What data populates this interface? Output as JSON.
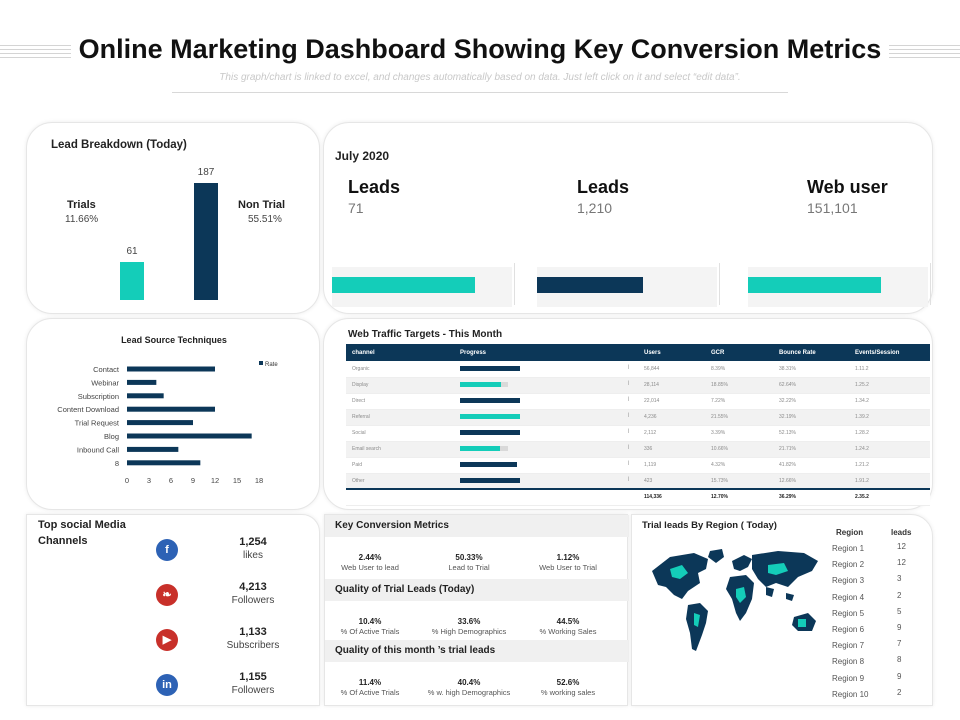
{
  "header": {
    "title": "Online Marketing Dashboard Showing Key Conversion Metrics",
    "subtitle": "This graph/chart is linked to excel, and changes automatically based on data. Just left click on it and select “edit data”."
  },
  "lead_breakdown": {
    "title": "Lead Breakdown (Today)",
    "left_label": "Trials",
    "left_pct": "11.66%",
    "right_label": "Non Trial",
    "right_pct": "55.51%",
    "bars": [
      {
        "label": "61",
        "value": 61,
        "color": "#14cdb9"
      },
      {
        "label": "187",
        "value": 187,
        "color": "#0c3758"
      }
    ]
  },
  "july": {
    "title": "July 2020",
    "kpis": [
      {
        "label": "Leads",
        "value": "71",
        "fill": 0.97,
        "color": "#14cdb9"
      },
      {
        "label": "Leads",
        "value": "1,210",
        "fill": 0.72,
        "color": "#0c3758"
      },
      {
        "label": "Web user",
        "value": "151,101",
        "fill": 0.9,
        "color": "#14cdb9"
      }
    ]
  },
  "chart_data": {
    "type": "bar",
    "orientation": "horizontal",
    "title": "Lead Source Techniques",
    "categories": [
      "Contact",
      "Webinar",
      "Subscription",
      "Content Download",
      "Trial Request",
      "Blog",
      "Inbound Call",
      "8"
    ],
    "series": [
      {
        "name": "Rate",
        "values": [
          12,
          4,
          5,
          12,
          9,
          17,
          7,
          10
        ]
      }
    ],
    "xlim": [
      0,
      18
    ],
    "xticks": [
      "0",
      "3",
      "6",
      "9",
      "12",
      "15",
      "18"
    ],
    "legend": "top-right",
    "color": "#0c3758"
  },
  "web_traffic": {
    "title": "Web Traffic Targets - This Month",
    "columns": [
      "channel",
      "Progress",
      "Users",
      "GCR",
      "Bounce Rate",
      "Events/Session"
    ],
    "rows": [
      {
        "channel": "Organic",
        "progress": 1.0,
        "color": "#0c3758",
        "mark": "l",
        "users": "56,844",
        "gcr": "8.39%",
        "bounce": "38.31%",
        "events": "1.11.2"
      },
      {
        "channel": "Display",
        "progress": 0.68,
        "color": "#14cdb9",
        "mark": "l",
        "users": "28,114",
        "gcr": "18.85%",
        "bounce": "62.64%",
        "events": "1.25.2"
      },
      {
        "channel": "Direct",
        "progress": 1.0,
        "color": "#0c3758",
        "mark": "l",
        "users": "22,014",
        "gcr": "7.22%",
        "bounce": "32.22%",
        "events": "1.34.2"
      },
      {
        "channel": "Referral",
        "progress": 1.0,
        "color": "#14cdb9",
        "mark": "l",
        "users": "4,236",
        "gcr": "21.55%",
        "bounce": "32.19%",
        "events": "1.39.2"
      },
      {
        "channel": "Social",
        "progress": 1.0,
        "color": "#0c3758",
        "mark": "l",
        "users": "2,112",
        "gcr": "3.39%",
        "bounce": "52.13%",
        "events": "1.28.2"
      },
      {
        "channel": "Email search",
        "progress": 0.66,
        "color": "#14cdb9",
        "mark": "l",
        "users": "336",
        "gcr": "10.66%",
        "bounce": "21.71%",
        "events": "1.24.2"
      },
      {
        "channel": "Paid",
        "progress": 0.95,
        "color": "#0c3758",
        "mark": "l",
        "users": "1,119",
        "gcr": "4.32%",
        "bounce": "41.82%",
        "events": "1.21.2"
      },
      {
        "channel": "Other",
        "progress": 1.0,
        "color": "#0c3758",
        "mark": "l",
        "users": "423",
        "gcr": "15.73%",
        "bounce": "12.66%",
        "events": "1.91.2"
      }
    ],
    "totals": {
      "users": "114,336",
      "gcr": "12.70%",
      "bounce": "36.29%",
      "events": "2.35.2"
    }
  },
  "social": {
    "title": "Top social Media Channels",
    "items": [
      {
        "icon": "facebook-icon",
        "glyph": "f",
        "color": "#2d62b5",
        "value": "1,254",
        "label": "likes"
      },
      {
        "icon": "twitter-icon",
        "glyph": "❧",
        "color": "#c8302a",
        "value": "4,213",
        "label": "Followers"
      },
      {
        "icon": "youtube-icon",
        "glyph": "▶",
        "color": "#c8302a",
        "value": "1,133",
        "label": "Subscribers"
      },
      {
        "icon": "linkedin-icon",
        "glyph": "in",
        "color": "#2d62b5",
        "value": "1,155",
        "label": "Followers"
      }
    ]
  },
  "key_conversion": {
    "sections": [
      {
        "title": "Key Conversion Metrics",
        "metrics": [
          {
            "value": "2.44%",
            "label": "Web User to lead"
          },
          {
            "value": "50.33%",
            "label": "Lead to Trial"
          },
          {
            "value": "1.12%",
            "label": "Web User to Trial"
          }
        ]
      },
      {
        "title": "Quality of Trial Leads (Today)",
        "metrics": [
          {
            "value": "10.4%",
            "label": "% Of Active Trials"
          },
          {
            "value": "33.6%",
            "label": "% High Demographics"
          },
          {
            "value": "44.5%",
            "label": "% Working Sales"
          }
        ]
      },
      {
        "title": "Quality of this month ’s trial leads",
        "metrics": [
          {
            "value": "11.4%",
            "label": "% Of Active Trials"
          },
          {
            "value": "40.4%",
            "label": "% w. high Demographics"
          },
          {
            "value": "52.6%",
            "label": "% working sales"
          }
        ]
      }
    ]
  },
  "region": {
    "title": "Trial leads By Region ( Today)",
    "col_region": "Region",
    "col_leads": "leads",
    "rows": [
      {
        "region": "Region 1",
        "leads": "12"
      },
      {
        "region": "Region 2",
        "leads": "12"
      },
      {
        "region": "Region 3",
        "leads": "3"
      },
      {
        "region": "Region 4",
        "leads": "2"
      },
      {
        "region": "Region 5",
        "leads": "5"
      },
      {
        "region": "Region 6",
        "leads": "9"
      },
      {
        "region": "Region 7",
        "leads": "7"
      },
      {
        "region": "Region 8",
        "leads": "8"
      },
      {
        "region": "Region 9",
        "leads": "9"
      },
      {
        "region": "Region 10",
        "leads": "2"
      }
    ]
  }
}
